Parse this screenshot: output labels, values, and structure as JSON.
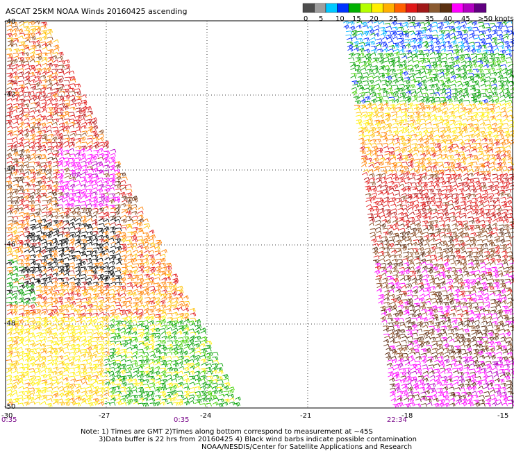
{
  "title": "ASCAT 25KM NOAA Winds 20160425 ascending",
  "legend": {
    "colors": [
      "#4d4d4d",
      "#9e9e9e",
      "#00c8ff",
      "#0033ff",
      "#00b000",
      "#b4ff00",
      "#ffee00",
      "#ffb000",
      "#ff6000",
      "#e01818",
      "#a01818",
      "#8a5a30",
      "#5a3010",
      "#ff00ff",
      "#b000c0",
      "#600080"
    ],
    "labels": [
      "0",
      "5",
      "10",
      "15",
      "20",
      "25",
      "30",
      "35",
      "40",
      "45",
      ">50 knots"
    ]
  },
  "axes": {
    "lat_labels": [
      "-40",
      "-42",
      "-44",
      "-46",
      "-48",
      "-50"
    ],
    "lon_labels": [
      "-30",
      "-27",
      "-24",
      "-21",
      "-18",
      "-15"
    ]
  },
  "times": [
    "0:35",
    "0:35",
    "22:34"
  ],
  "notes": [
    "Note: 1) Times are GMT 2)Times along bottom correspond to measurement at ~45S",
    "3)Data buffer is 22 hrs from 20160425 4) Black wind barbs indicate possible contamination",
    "NOAA/NESDIS/Center for Satellite Applications and Research"
  ]
}
